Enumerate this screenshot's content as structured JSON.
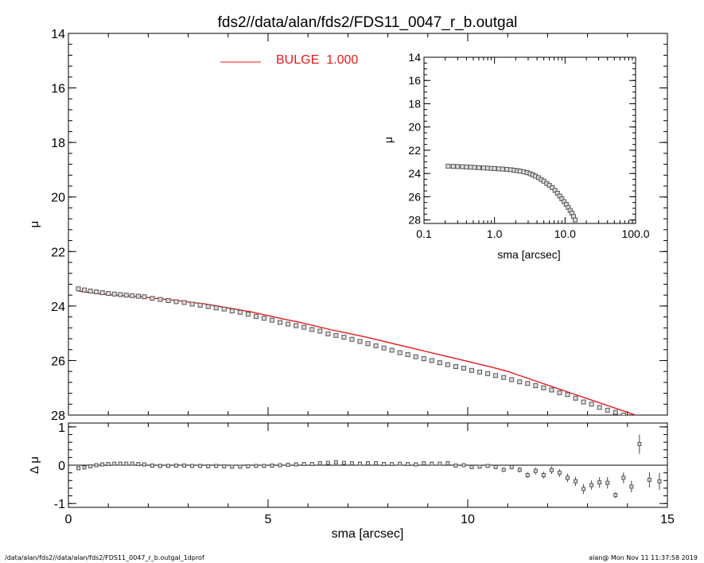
{
  "chart_data": [
    {
      "type": "scatter",
      "panel": "main",
      "title": "fds2//data/alan/fds2/FDS11_0047_r_b.outgal",
      "ylabel": "μ",
      "xlim": [
        0,
        15
      ],
      "ylim": [
        28,
        14
      ],
      "y_reversed": true,
      "yticks": [
        14,
        16,
        18,
        20,
        22,
        24,
        26,
        28
      ],
      "legend": {
        "label": "BULGE",
        "value": "1.000",
        "color": "#e41a1c",
        "placement": "top-left"
      },
      "series": [
        {
          "kind": "data",
          "marker": "open-square",
          "color": "#555555",
          "x": [
            0.25,
            0.4,
            0.55,
            0.7,
            0.85,
            1.0,
            1.15,
            1.3,
            1.45,
            1.6,
            1.75,
            1.9,
            2.1,
            2.3,
            2.5,
            2.7,
            2.9,
            3.1,
            3.3,
            3.5,
            3.7,
            3.9,
            4.1,
            4.3,
            4.5,
            4.7,
            4.9,
            5.1,
            5.3,
            5.5,
            5.7,
            5.9,
            6.1,
            6.3,
            6.5,
            6.7,
            6.9,
            7.1,
            7.3,
            7.5,
            7.7,
            7.9,
            8.1,
            8.3,
            8.5,
            8.7,
            8.9,
            9.1,
            9.3,
            9.5,
            9.7,
            9.9,
            10.1,
            10.3,
            10.5,
            10.7,
            10.9,
            11.1,
            11.3,
            11.5,
            11.7,
            11.9,
            12.1,
            12.3,
            12.5,
            12.7,
            12.9,
            13.1,
            13.3,
            13.5,
            13.7,
            13.9,
            14.1,
            14.3,
            14.55,
            14.8
          ],
          "y": [
            23.37,
            23.41,
            23.45,
            23.48,
            23.51,
            23.54,
            23.56,
            23.58,
            23.6,
            23.62,
            23.64,
            23.66,
            23.72,
            23.76,
            23.8,
            23.84,
            23.87,
            23.93,
            23.97,
            24.02,
            24.07,
            24.11,
            24.18,
            24.23,
            24.3,
            24.38,
            24.45,
            24.52,
            24.6,
            24.66,
            24.72,
            24.78,
            24.86,
            24.92,
            25.02,
            25.08,
            25.14,
            25.22,
            25.3,
            25.38,
            25.46,
            25.54,
            25.62,
            25.71,
            25.78,
            25.86,
            25.93,
            26.0,
            26.08,
            26.15,
            26.22,
            26.28,
            26.36,
            26.42,
            26.48,
            26.55,
            26.62,
            26.7,
            26.78,
            26.84,
            26.92,
            27.0,
            27.08,
            27.18,
            27.25,
            27.38,
            27.52,
            27.6,
            27.72,
            27.82,
            27.9,
            28.0,
            28.1,
            28.2,
            28.3,
            28.6
          ]
        },
        {
          "kind": "model",
          "name": "BULGE",
          "color": "#e41a1c",
          "x": [
            0.25,
            0.6,
            1.0,
            1.4,
            1.8,
            2.2,
            2.6,
            3.0,
            3.4,
            3.8,
            4.2,
            4.6,
            5.0,
            5.4,
            5.8,
            6.2,
            6.6,
            7.0,
            7.4,
            7.8,
            8.2,
            8.6,
            9.0,
            9.4,
            9.8,
            10.2,
            10.6,
            11.0,
            11.4,
            11.8,
            12.2,
            12.6,
            13.0,
            13.4,
            13.8,
            14.2,
            14.4
          ],
          "y": [
            23.45,
            23.52,
            23.58,
            23.62,
            23.66,
            23.72,
            23.78,
            23.85,
            23.92,
            24.02,
            24.12,
            24.22,
            24.35,
            24.48,
            24.6,
            24.74,
            24.88,
            25.0,
            25.12,
            25.26,
            25.4,
            25.54,
            25.68,
            25.82,
            25.96,
            26.1,
            26.24,
            26.4,
            26.6,
            26.8,
            27.0,
            27.2,
            27.4,
            27.6,
            27.8,
            28.0,
            28.2
          ]
        }
      ]
    },
    {
      "type": "scatter",
      "panel": "residual",
      "xlabel": "sma [arcsec]",
      "ylabel": "Δ μ",
      "xlim": [
        0,
        15
      ],
      "ylim": [
        -1.1,
        1.1
      ],
      "xticks": [
        0,
        5,
        10,
        15
      ],
      "yticks": [
        1,
        0,
        -1
      ],
      "zero_line": true,
      "series": [
        {
          "kind": "residual",
          "marker": "open-square",
          "color": "#555555",
          "x": [
            0.25,
            0.4,
            0.55,
            0.7,
            0.85,
            1.0,
            1.15,
            1.3,
            1.45,
            1.6,
            1.75,
            1.9,
            2.1,
            2.3,
            2.5,
            2.7,
            2.9,
            3.1,
            3.3,
            3.5,
            3.7,
            3.9,
            4.1,
            4.3,
            4.5,
            4.7,
            4.9,
            5.1,
            5.3,
            5.5,
            5.7,
            5.9,
            6.1,
            6.3,
            6.5,
            6.7,
            6.9,
            7.1,
            7.3,
            7.5,
            7.7,
            7.9,
            8.1,
            8.3,
            8.5,
            8.7,
            8.9,
            9.1,
            9.3,
            9.5,
            9.7,
            9.9,
            10.1,
            10.3,
            10.5,
            10.7,
            10.9,
            11.1,
            11.3,
            11.5,
            11.7,
            11.9,
            12.1,
            12.3,
            12.5,
            12.7,
            12.9,
            13.1,
            13.3,
            13.5,
            13.7,
            13.9,
            14.1,
            14.3,
            14.55,
            14.8
          ],
          "y": [
            -0.08,
            -0.06,
            -0.03,
            0.0,
            0.02,
            0.03,
            0.04,
            0.04,
            0.04,
            0.04,
            0.03,
            0.02,
            -0.01,
            -0.02,
            -0.02,
            -0.01,
            -0.01,
            -0.02,
            -0.02,
            -0.03,
            -0.02,
            -0.03,
            -0.04,
            -0.04,
            -0.03,
            -0.02,
            -0.02,
            -0.01,
            0.0,
            0.01,
            0.02,
            0.03,
            0.03,
            0.05,
            0.06,
            0.08,
            0.06,
            0.05,
            0.04,
            0.05,
            0.05,
            0.03,
            0.03,
            0.04,
            0.03,
            0.02,
            0.05,
            0.04,
            0.04,
            0.05,
            -0.01,
            0.0,
            -0.05,
            -0.04,
            -0.02,
            -0.05,
            -0.12,
            -0.05,
            -0.12,
            -0.26,
            -0.15,
            -0.26,
            -0.13,
            -0.2,
            -0.33,
            -0.42,
            -0.62,
            -0.52,
            -0.45,
            -0.46,
            -0.78,
            -0.33,
            -0.56,
            0.55,
            -0.38,
            -0.42
          ],
          "err": [
            0.01,
            0.01,
            0.01,
            0.01,
            0.01,
            0.01,
            0.01,
            0.01,
            0.01,
            0.01,
            0.01,
            0.01,
            0.01,
            0.01,
            0.01,
            0.01,
            0.01,
            0.01,
            0.01,
            0.01,
            0.01,
            0.01,
            0.01,
            0.01,
            0.01,
            0.01,
            0.01,
            0.01,
            0.01,
            0.01,
            0.01,
            0.01,
            0.01,
            0.01,
            0.01,
            0.01,
            0.01,
            0.01,
            0.01,
            0.01,
            0.01,
            0.01,
            0.02,
            0.02,
            0.02,
            0.02,
            0.02,
            0.02,
            0.02,
            0.03,
            0.03,
            0.03,
            0.04,
            0.04,
            0.05,
            0.05,
            0.06,
            0.06,
            0.07,
            0.08,
            0.09,
            0.09,
            0.1,
            0.1,
            0.11,
            0.12,
            0.13,
            0.12,
            0.14,
            0.15,
            0.08,
            0.14,
            0.15,
            0.25,
            0.2,
            0.22
          ]
        }
      ]
    },
    {
      "type": "scatter",
      "panel": "inset",
      "xlabel": "sma [arcsec]",
      "ylabel": "μ",
      "xscale": "log",
      "xlim": [
        0.1,
        100
      ],
      "ylim": [
        28.3,
        14
      ],
      "y_reversed": true,
      "xticks": [
        "0.1",
        "1.0",
        "10.0",
        "100.0"
      ],
      "yticks": [
        14,
        16,
        18,
        20,
        22,
        24,
        26,
        28
      ],
      "series": [
        {
          "kind": "data",
          "marker": "open-square",
          "color": "#555555",
          "x": [
            0.22,
            0.26,
            0.3,
            0.35,
            0.4,
            0.46,
            0.52,
            0.6,
            0.7,
            0.8,
            0.9,
            1.0,
            1.15,
            1.3,
            1.5,
            1.7,
            1.9,
            2.1,
            2.3,
            2.6,
            2.9,
            3.2,
            3.5,
            3.8,
            4.2,
            4.6,
            5.0,
            5.5,
            6.0,
            6.6,
            7.2,
            7.8,
            8.4,
            9.0,
            9.7,
            10.4,
            11.1,
            11.8,
            12.5,
            13.2,
            13.9
          ],
          "y": [
            23.37,
            23.39,
            23.4,
            23.42,
            23.44,
            23.46,
            23.48,
            23.5,
            23.52,
            23.54,
            23.56,
            23.58,
            23.6,
            23.62,
            23.65,
            23.68,
            23.72,
            23.76,
            23.8,
            23.86,
            23.93,
            24.02,
            24.12,
            24.23,
            24.36,
            24.52,
            24.66,
            24.86,
            25.02,
            25.22,
            25.46,
            25.7,
            25.94,
            26.18,
            26.42,
            26.66,
            26.92,
            27.18,
            27.42,
            27.7,
            28.0
          ]
        }
      ]
    }
  ],
  "footer": {
    "left": "/data/alan/fds2//data/alan/fds2/FDS11_0047_r_b.outgal_1dprof",
    "right": "alan@  Mon Nov 11 11:37:58 2019"
  }
}
